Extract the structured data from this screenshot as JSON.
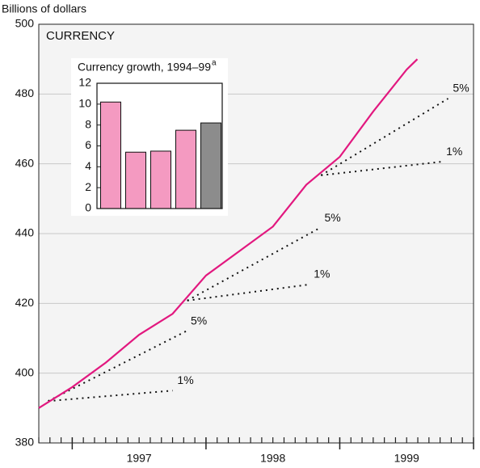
{
  "chart_data": [
    {
      "type": "line",
      "y_label": "Billions of dollars",
      "title": "CURRENCY",
      "x": [
        1996.75,
        1997.0,
        1997.25,
        1997.5,
        1997.75,
        1998.0,
        1998.25,
        1998.5,
        1998.75,
        1999.0,
        1999.25,
        1999.5,
        1999.58
      ],
      "values": [
        390,
        396,
        403,
        411,
        417,
        428,
        435,
        442,
        454,
        462,
        475,
        487,
        490
      ],
      "color": "#e2187f",
      "xlim": [
        1996.75,
        2000
      ],
      "xticks": [
        {
          "value": 1997.5,
          "label": "1997"
        },
        {
          "value": 1998.5,
          "label": "1998"
        },
        {
          "value": 1999.5,
          "label": "1999"
        }
      ],
      "ylim": [
        380,
        500
      ],
      "yticks": [
        380,
        400,
        420,
        440,
        460,
        480,
        500
      ],
      "grid": true,
      "projections": [
        {
          "label": "5%",
          "x": [
            1996.82,
            1997.85
          ],
          "values": [
            392,
            412
          ]
        },
        {
          "label": "1%",
          "x": [
            1996.82,
            1997.75
          ],
          "values": [
            392,
            395
          ]
        },
        {
          "label": "5%",
          "x": [
            1997.86,
            1998.85
          ],
          "values": [
            420.8,
            441.6
          ]
        },
        {
          "label": "1%",
          "x": [
            1997.86,
            1998.77
          ],
          "values": [
            420.8,
            425.4
          ]
        },
        {
          "label": "5%",
          "x": [
            1998.86,
            1999.81
          ],
          "values": [
            456.7,
            478.7
          ]
        },
        {
          "label": "1%",
          "x": [
            1998.86,
            1999.76
          ],
          "values": [
            456.7,
            460.6
          ]
        }
      ]
    },
    {
      "type": "bar",
      "title": "Currency growth, 1994–99",
      "title_note": "a",
      "categories": [
        null,
        null,
        null,
        null,
        null
      ],
      "values": [
        10.2,
        5.4,
        5.5,
        7.5,
        8.2
      ],
      "colors": [
        "#f49ac1",
        "#f49ac1",
        "#f49ac1",
        "#f49ac1",
        "#8c8c8c"
      ],
      "ylim": [
        0,
        12
      ],
      "yticks": [
        0,
        2,
        4,
        6,
        8,
        10,
        12
      ]
    }
  ]
}
